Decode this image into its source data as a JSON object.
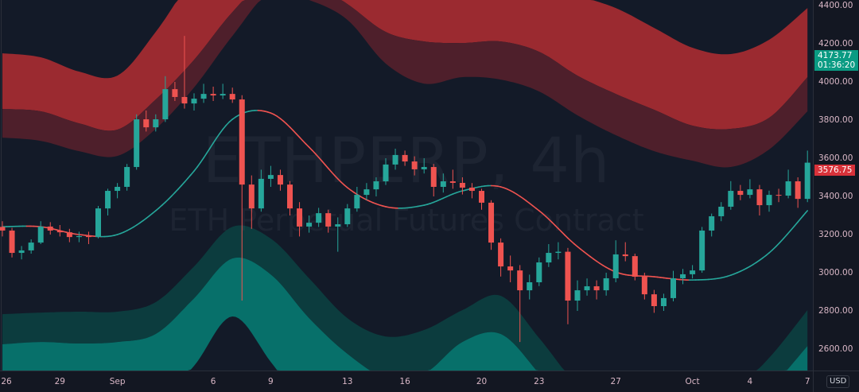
{
  "chart_data": {
    "type": "candlestick",
    "symbol_watermark": "ETHPERP, 4h",
    "description_watermark": "ETH Perpetual Futures Contract",
    "currency_button": "USD",
    "ylim": [
      2500,
      4420
    ],
    "price_ticks": [
      "4400.00",
      "4200.00",
      "4000.00",
      "3800.00",
      "3600.00",
      "3400.00",
      "3200.00",
      "3000.00",
      "2800.00",
      "2600.00"
    ],
    "time_ticks": [
      {
        "label": "26",
        "date": "08-26"
      },
      {
        "label": "29",
        "date": "08-29"
      },
      {
        "label": "Sep",
        "date": "09-01"
      },
      {
        "label": "6",
        "date": "09-06"
      },
      {
        "label": "9",
        "date": "09-09"
      },
      {
        "label": "13",
        "date": "09-13"
      },
      {
        "label": "16",
        "date": "09-16"
      },
      {
        "label": "20",
        "date": "09-20"
      },
      {
        "label": "23",
        "date": "09-23"
      },
      {
        "label": "27",
        "date": "09-27"
      },
      {
        "label": "Oct",
        "date": "10-01"
      },
      {
        "label": "4",
        "date": "10-04"
      },
      {
        "label": "7",
        "date": "10-07"
      }
    ],
    "last_price_label": {
      "value": "3576.75",
      "color": "#d8323a"
    },
    "indicator_label": {
      "value": "4173.77",
      "countdown": "01:36:20",
      "color": "#0a9b83"
    },
    "colors": {
      "up": "#26a69a",
      "down": "#ef5350",
      "upper_outer": "#9b2a30",
      "upper_inner": "#4e1f2b",
      "lower_inner": "#0c3c3e",
      "lower_outer": "#07706a",
      "background": "#131a28"
    },
    "candles": [
      [
        "08-26 00",
        3240,
        3270,
        3190,
        3221
      ],
      [
        "08-26 12",
        3221,
        3235,
        3080,
        3104
      ],
      [
        "08-27 00",
        3104,
        3140,
        3070,
        3117
      ],
      [
        "08-27 12",
        3117,
        3175,
        3100,
        3158
      ],
      [
        "08-28 00",
        3158,
        3270,
        3150,
        3242
      ],
      [
        "08-28 12",
        3242,
        3265,
        3200,
        3221
      ],
      [
        "08-29 00",
        3221,
        3250,
        3190,
        3212
      ],
      [
        "08-29 12",
        3212,
        3230,
        3160,
        3187
      ],
      [
        "08-30 00",
        3187,
        3215,
        3160,
        3192
      ],
      [
        "08-30 12",
        3192,
        3215,
        3150,
        3187
      ],
      [
        "08-31 00",
        3187,
        3350,
        3180,
        3337
      ],
      [
        "08-31 12",
        3337,
        3440,
        3300,
        3429
      ],
      [
        "09-01 00",
        3429,
        3470,
        3390,
        3450
      ],
      [
        "09-01 12",
        3450,
        3570,
        3430,
        3554
      ],
      [
        "09-02 00",
        3554,
        3830,
        3540,
        3804
      ],
      [
        "09-02 12",
        3804,
        3850,
        3740,
        3762
      ],
      [
        "09-03 00",
        3762,
        3830,
        3740,
        3804
      ],
      [
        "09-03 12",
        3804,
        4030,
        3790,
        3962
      ],
      [
        "09-04 00",
        3962,
        4000,
        3900,
        3921
      ],
      [
        "09-04 12",
        3921,
        4241,
        3860,
        3887
      ],
      [
        "09-05 00",
        3887,
        3940,
        3850,
        3912
      ],
      [
        "09-05 12",
        3912,
        3990,
        3890,
        3937
      ],
      [
        "09-06 00",
        3937,
        3975,
        3900,
        3929
      ],
      [
        "09-06 12",
        3929,
        3990,
        3910,
        3937
      ],
      [
        "09-07 00",
        3937,
        3970,
        3890,
        3908
      ],
      [
        "09-07 12",
        3908,
        3930,
        2854,
        3462
      ],
      [
        "09-08 00",
        3462,
        3510,
        3230,
        3337
      ],
      [
        "09-08 12",
        3337,
        3540,
        3320,
        3492
      ],
      [
        "09-09 00",
        3492,
        3560,
        3450,
        3512
      ],
      [
        "09-09 12",
        3512,
        3540,
        3430,
        3462
      ],
      [
        "09-10 00",
        3462,
        3480,
        3300,
        3337
      ],
      [
        "09-10 12",
        3337,
        3370,
        3190,
        3242
      ],
      [
        "09-11 00",
        3242,
        3300,
        3210,
        3262
      ],
      [
        "09-11 12",
        3262,
        3340,
        3240,
        3312
      ],
      [
        "09-12 00",
        3312,
        3330,
        3210,
        3242
      ],
      [
        "09-12 12",
        3242,
        3290,
        3110,
        3254
      ],
      [
        "09-13 00",
        3254,
        3360,
        3240,
        3337
      ],
      [
        "09-13 12",
        3337,
        3450,
        3320,
        3408
      ],
      [
        "09-14 00",
        3408,
        3470,
        3380,
        3437
      ],
      [
        "09-14 12",
        3437,
        3500,
        3400,
        3479
      ],
      [
        "09-15 00",
        3479,
        3600,
        3460,
        3567
      ],
      [
        "09-15 12",
        3567,
        3650,
        3540,
        3617
      ],
      [
        "09-16 00",
        3617,
        3640,
        3560,
        3583
      ],
      [
        "09-16 12",
        3583,
        3610,
        3510,
        3542
      ],
      [
        "09-17 00",
        3542,
        3600,
        3520,
        3554
      ],
      [
        "09-17 12",
        3554,
        3570,
        3400,
        3450
      ],
      [
        "09-18 00",
        3450,
        3520,
        3420,
        3479
      ],
      [
        "09-18 12",
        3479,
        3540,
        3440,
        3471
      ],
      [
        "09-19 00",
        3471,
        3500,
        3410,
        3446
      ],
      [
        "09-19 12",
        3446,
        3470,
        3390,
        3429
      ],
      [
        "09-20 00",
        3429,
        3440,
        3330,
        3367
      ],
      [
        "09-20 12",
        3367,
        3380,
        3120,
        3158
      ],
      [
        "09-21 00",
        3158,
        3180,
        2980,
        3033
      ],
      [
        "09-21 12",
        3033,
        3090,
        2950,
        3012
      ],
      [
        "09-22 00",
        3012,
        3040,
        2637,
        2908
      ],
      [
        "09-22 12",
        2908,
        2990,
        2860,
        2950
      ],
      [
        "09-23 00",
        2950,
        3080,
        2930,
        3054
      ],
      [
        "09-23 12",
        3054,
        3150,
        3030,
        3104
      ],
      [
        "09-24 00",
        3104,
        3160,
        3070,
        3110
      ],
      [
        "09-24 12",
        3110,
        3130,
        2730,
        2854
      ],
      [
        "09-25 00",
        2854,
        2960,
        2800,
        2908
      ],
      [
        "09-25 12",
        2908,
        2970,
        2880,
        2929
      ],
      [
        "09-26 00",
        2929,
        2960,
        2860,
        2908
      ],
      [
        "09-26 12",
        2908,
        3000,
        2880,
        2971
      ],
      [
        "09-27 00",
        2971,
        3170,
        2950,
        3096
      ],
      [
        "09-27 12",
        3096,
        3160,
        3060,
        3087
      ],
      [
        "09-28 00",
        3087,
        3100,
        2960,
        2979
      ],
      [
        "09-28 12",
        2979,
        3000,
        2860,
        2887
      ],
      [
        "09-29 00",
        2887,
        2910,
        2790,
        2825
      ],
      [
        "09-29 12",
        2825,
        2890,
        2800,
        2867
      ],
      [
        "09-30 00",
        2867,
        3010,
        2850,
        2971
      ],
      [
        "09-30 12",
        2971,
        3020,
        2940,
        2992
      ],
      [
        "10-01 00",
        2992,
        3040,
        2970,
        3012
      ],
      [
        "10-01 12",
        3012,
        3240,
        3000,
        3221
      ],
      [
        "10-02 00",
        3221,
        3310,
        3190,
        3296
      ],
      [
        "10-02 12",
        3296,
        3370,
        3270,
        3346
      ],
      [
        "10-03 00",
        3346,
        3480,
        3330,
        3429
      ],
      [
        "10-03 12",
        3429,
        3460,
        3380,
        3408
      ],
      [
        "10-04 00",
        3408,
        3490,
        3390,
        3437
      ],
      [
        "10-04 12",
        3437,
        3460,
        3300,
        3354
      ],
      [
        "10-05 00",
        3354,
        3430,
        3320,
        3408
      ],
      [
        "10-05 12",
        3408,
        3440,
        3370,
        3404
      ],
      [
        "10-06 00",
        3404,
        3540,
        3390,
        3479
      ],
      [
        "10-06 12",
        3479,
        3500,
        3340,
        3387
      ],
      [
        "10-07 00",
        3387,
        3640,
        3370,
        3576.75
      ]
    ],
    "bands": {
      "dates": [
        "08-26",
        "08-28",
        "08-30",
        "09-01",
        "09-03",
        "09-05",
        "09-07",
        "09-09",
        "09-11",
        "09-13",
        "09-15",
        "09-17",
        "09-19",
        "09-21",
        "09-23",
        "09-25",
        "09-27",
        "09-29",
        "10-01",
        "10-03",
        "10-05",
        "10-07"
      ],
      "center": [
        3241,
        3241,
        3200,
        3200,
        3325,
        3533,
        3804,
        3837,
        3658,
        3446,
        3346,
        3354,
        3429,
        3450,
        3325,
        3137,
        3004,
        2979,
        2962,
        2987,
        3104,
        3325
      ],
      "upper3": [
        4150,
        4129,
        4054,
        4033,
        4262,
        4554,
        4762,
        4846,
        4762,
        4637,
        4554,
        4512,
        4512,
        4512,
        4492,
        4450,
        4387,
        4283,
        4179,
        4146,
        4221,
        4387
      ],
      "upper2": [
        3858,
        3846,
        3783,
        3750,
        3908,
        4116,
        4366,
        4554,
        4533,
        4408,
        4262,
        4212,
        4204,
        4212,
        4158,
        4033,
        3937,
        3854,
        3771,
        3754,
        3812,
        4025
      ],
      "upper1": [
        3708,
        3691,
        3637,
        3612,
        3754,
        3971,
        4241,
        4471,
        4429,
        4325,
        4096,
        3991,
        4025,
        4012,
        3950,
        3825,
        3721,
        3637,
        3587,
        3554,
        3646,
        3846
      ],
      "lower1": [
        2783,
        2791,
        2796,
        2796,
        2846,
        3033,
        3241,
        3179,
        2971,
        2762,
        2666,
        2700,
        2804,
        2879,
        2658,
        2408,
        2262,
        2221,
        2262,
        2366,
        2554,
        2804
      ],
      "lower2": [
        2625,
        2637,
        2629,
        2637,
        2679,
        2866,
        3075,
        2991,
        2762,
        2575,
        2450,
        2471,
        2637,
        2679,
        2471,
        2221,
        2096,
        2054,
        2096,
        2221,
        2387,
        2616
      ],
      "lower3": [
        2262,
        2262,
        2242,
        2221,
        2304,
        2512,
        2771,
        2533,
        2262,
        2054,
        1929,
        1929,
        2012,
        2054,
        1887,
        1679,
        1512,
        1471,
        1512,
        1596,
        1762,
        1971
      ]
    }
  }
}
